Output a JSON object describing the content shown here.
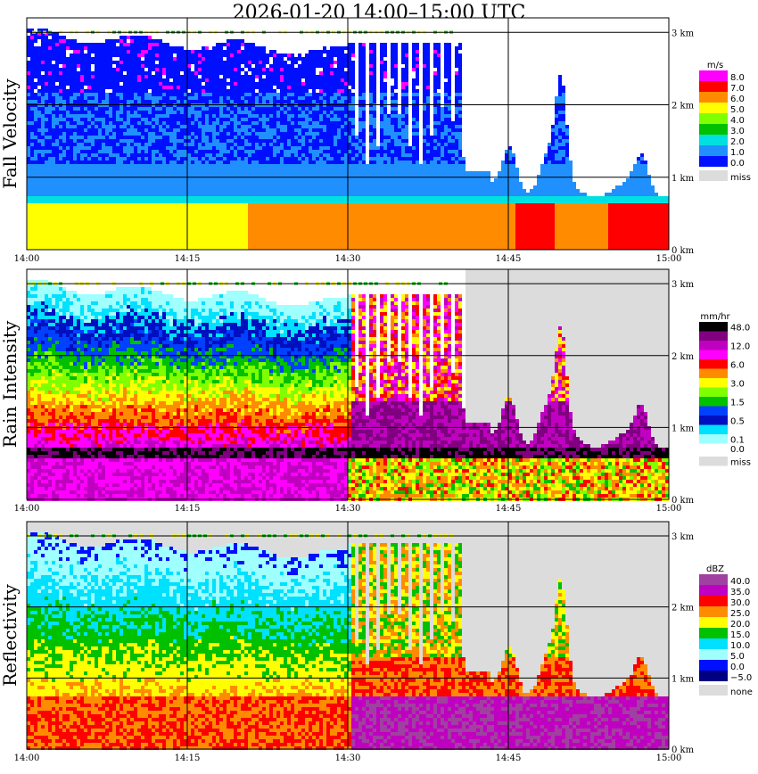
{
  "title": "2026-01-20   14:00–15:00 UTC",
  "chart_data": [
    {
      "type": "heatmap",
      "ylabel": "Fall Velocity",
      "unit": "m/s",
      "x_ticks": [
        "14:00",
        "14:15",
        "14:30",
        "14:45",
        "15:00"
      ],
      "y_ticks": [
        "0 km",
        "1 km",
        "2 km",
        "3 km"
      ],
      "ylim_km": [
        0,
        3.2
      ],
      "legend": [
        {
          "label": "8.0",
          "color": "#ff00ff"
        },
        {
          "label": "7.0",
          "color": "#ff0000"
        },
        {
          "label": "6.0",
          "color": "#ff8c00"
        },
        {
          "label": "5.0",
          "color": "#ffff00"
        },
        {
          "label": "4.0",
          "color": "#80ff00"
        },
        {
          "label": "3.0",
          "color": "#00c000"
        },
        {
          "label": "2.0",
          "color": "#00e0e0"
        },
        {
          "label": "1.0",
          "color": "#2090ff"
        },
        {
          "label": "0.0",
          "color": "#0010ff"
        },
        {
          "label": "miss",
          "color": "#dcdcdc"
        }
      ]
    },
    {
      "type": "heatmap",
      "ylabel": "Rain Intensity",
      "unit": "mm/hr",
      "x_ticks": [
        "14:00",
        "14:15",
        "14:30",
        "14:45",
        "15:00"
      ],
      "y_ticks": [
        "0 km",
        "1 km",
        "2 km",
        "3 km"
      ],
      "ylim_km": [
        0,
        3.2
      ],
      "legend": [
        {
          "label": "48.0",
          "color": "#000000"
        },
        {
          "label": "",
          "color": "#800080"
        },
        {
          "label": "12.0",
          "color": "#c000c0"
        },
        {
          "label": "",
          "color": "#ff00ff"
        },
        {
          "label": "6.0",
          "color": "#ff0000"
        },
        {
          "label": "",
          "color": "#ff8c00"
        },
        {
          "label": "3.0",
          "color": "#ffff00"
        },
        {
          "label": "",
          "color": "#80ff00"
        },
        {
          "label": "1.5",
          "color": "#00c000"
        },
        {
          "label": "",
          "color": "#0040ff"
        },
        {
          "label": "0.5",
          "color": "#0010c0"
        },
        {
          "label": "",
          "color": "#00e0ff"
        },
        {
          "label": "0.1",
          "color": "#a0ffff"
        },
        {
          "label": "0.0",
          "color": "#ffffff"
        },
        {
          "label": "miss",
          "color": "#dcdcdc"
        }
      ]
    },
    {
      "type": "heatmap",
      "ylabel": "Reflectivity",
      "unit": "dBZ",
      "x_ticks": [
        "14:00",
        "14:15",
        "14:30",
        "14:45",
        "15:00"
      ],
      "y_ticks": [
        "0 km",
        "1 km",
        "2 km",
        "3 km"
      ],
      "ylim_km": [
        0,
        3.2
      ],
      "legend": [
        {
          "label": "40.0",
          "color": "#a040a0"
        },
        {
          "label": "35.0",
          "color": "#c000c0"
        },
        {
          "label": "30.0",
          "color": "#ff0000"
        },
        {
          "label": "25.0",
          "color": "#ff8c00"
        },
        {
          "label": "20.0",
          "color": "#ffff00"
        },
        {
          "label": "15.0",
          "color": "#00c000"
        },
        {
          "label": "10.0",
          "color": "#00e0ff"
        },
        {
          "label": "5.0",
          "color": "#a0ffff"
        },
        {
          "label": "0.0",
          "color": "#0010ff"
        },
        {
          "label": "−5.0",
          "color": "#000080"
        },
        {
          "label": "none",
          "color": "#dcdcdc"
        }
      ]
    }
  ]
}
